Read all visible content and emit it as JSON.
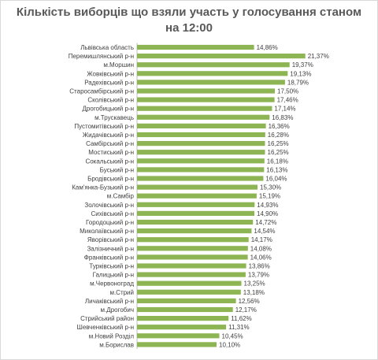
{
  "chart_data": {
    "type": "bar",
    "orientation": "horizontal",
    "title_line1": "Кількість виборців що взяли участь у голосування станом",
    "title_line2": "на 12:00",
    "bar_color": "#8db553",
    "grid": false,
    "legend": "none",
    "xlim": [
      0,
      22
    ],
    "categories": [
      "Львівська область",
      "Перемишлянський р-н",
      "м.Моршин",
      "Жовківський р-н",
      "Радехівський р-н",
      "Старосамбірський р-н",
      "Сколівський р-н",
      "Дрогобицький р-н",
      "м.Трускавець",
      "Пустомитівський р-н",
      "Жидачівський р-н",
      "Самбірський р-н",
      "Мостиський р-н",
      "Сокальський р-н",
      "Буський р-н",
      "Бродівський р-н",
      "Кам'янка-Бузький р-н",
      "м.Самбір",
      "Золочівський р-н",
      "Сихівський р-н",
      "Городоцький р-н",
      "Миколаївський р-н",
      "Яворівський р-н",
      "Залізничний р-н",
      "Франківський р-н",
      "Турківський р-н",
      "Галицький р-н",
      "м.Червоноград",
      "м.Стрий",
      "Личаківський р-н",
      "м.Дрогобич",
      "Стрийський район",
      "Шевченківський р-н",
      "м.Новий Розділ",
      "м.Борислав"
    ],
    "values": [
      14.86,
      21.37,
      19.37,
      19.13,
      18.79,
      17.5,
      17.46,
      17.14,
      16.83,
      16.36,
      16.28,
      16.25,
      16.25,
      16.18,
      16.13,
      16.04,
      15.3,
      15.19,
      14.93,
      14.9,
      14.72,
      14.54,
      14.17,
      14.08,
      14.06,
      13.86,
      13.79,
      13.25,
      13.18,
      12.56,
      12.17,
      11.62,
      11.31,
      10.45,
      10.1
    ],
    "value_labels": [
      "14,86%",
      "21,37%",
      "19,37%",
      "19,13%",
      "18,79%",
      "17,50%",
      "17,46%",
      "17,14%",
      "16,83%",
      "16,36%",
      "16,28%",
      "16,25%",
      "16,25%",
      "16,18%",
      "16,13%",
      "16,04%",
      "15,30%",
      "15,19%",
      "14,93%",
      "14,90%",
      "14,72%",
      "14,54%",
      "14,17%",
      "14,08%",
      "14,06%",
      "13,86%",
      "13,79%",
      "13,25%",
      "13,18%",
      "12,56%",
      "12,17%",
      "11,62%",
      "11,31%",
      "10,45%",
      "10,10%"
    ]
  }
}
